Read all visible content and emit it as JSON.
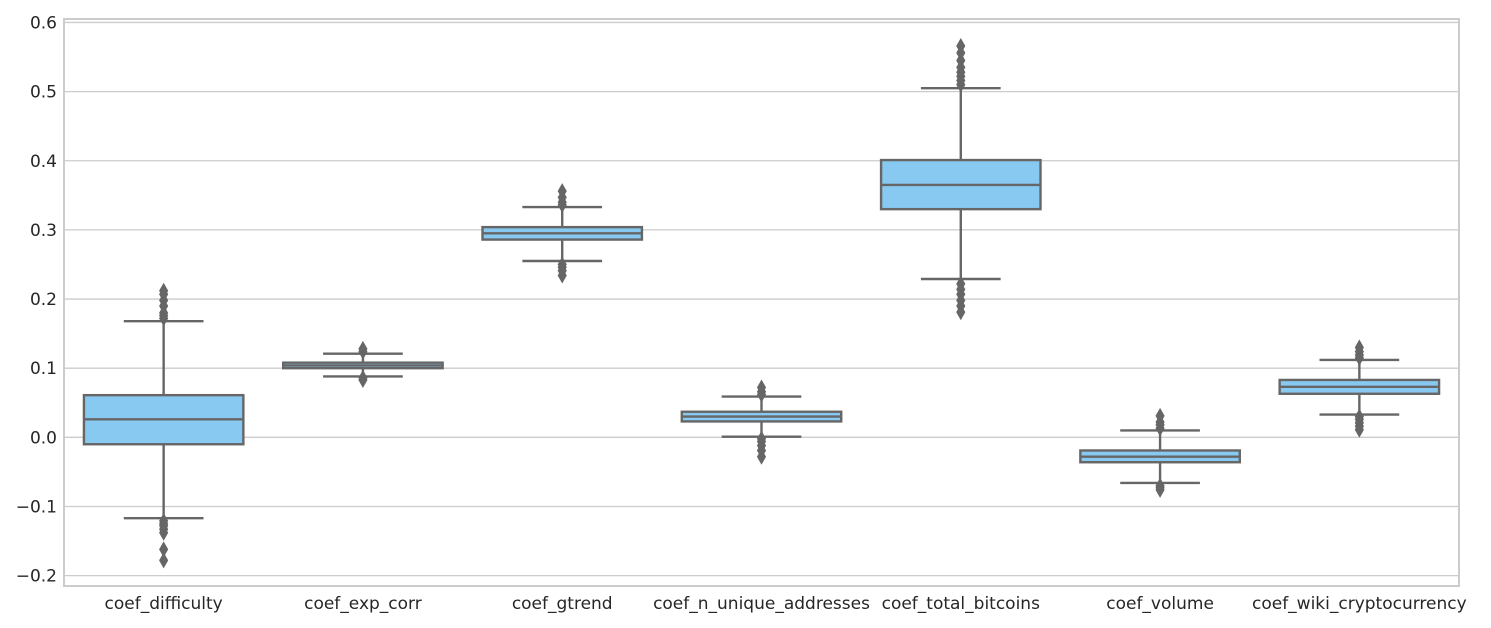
{
  "chart_data": {
    "type": "box",
    "title": "",
    "xlabel": "",
    "ylabel": "",
    "ylim": [
      -0.215,
      0.605
    ],
    "yticks": [
      -0.2,
      -0.1,
      0.0,
      0.1,
      0.2,
      0.3,
      0.4,
      0.5,
      0.6
    ],
    "ytick_labels": [
      "−0.2",
      "−0.1",
      "0.0",
      "0.1",
      "0.2",
      "0.3",
      "0.4",
      "0.5",
      "0.6"
    ],
    "grid": true,
    "box_color": "#87c9f0",
    "line_color": "#666666",
    "categories": [
      "coef_difficulty",
      "coef_exp_corr",
      "coef_gtrend",
      "coef_n_unique_addresses",
      "coef_total_bitcoins",
      "coef_volume",
      "coef_wiki_cryptocurrency"
    ],
    "boxes": [
      {
        "q1": -0.01,
        "median": 0.026,
        "q3": 0.061,
        "whisker_low": -0.117,
        "whisker_high": 0.168,
        "outliers": [
          0.172,
          0.176,
          0.18,
          0.19,
          0.198,
          0.207,
          0.212,
          -0.121,
          -0.125,
          -0.128,
          -0.133,
          -0.138,
          -0.162,
          -0.178
        ]
      },
      {
        "q1": 0.1,
        "median": 0.104,
        "q3": 0.108,
        "whisker_low": 0.088,
        "whisker_high": 0.121,
        "outliers": [
          0.124,
          0.128,
          0.083,
          0.086
        ]
      },
      {
        "q1": 0.286,
        "median": 0.295,
        "q3": 0.304,
        "whisker_low": 0.255,
        "whisker_high": 0.333,
        "outliers": [
          0.336,
          0.34,
          0.347,
          0.356,
          0.25,
          0.246,
          0.241,
          0.234
        ]
      },
      {
        "q1": 0.023,
        "median": 0.03,
        "q3": 0.037,
        "whisker_low": 0.001,
        "whisker_high": 0.059,
        "outliers": [
          0.062,
          0.066,
          0.072,
          -0.002,
          -0.006,
          -0.012,
          -0.019,
          -0.028
        ]
      },
      {
        "q1": 0.33,
        "median": 0.365,
        "q3": 0.401,
        "whisker_low": 0.229,
        "whisker_high": 0.505,
        "outliers": [
          0.51,
          0.516,
          0.522,
          0.528,
          0.535,
          0.545,
          0.556,
          0.566,
          0.222,
          0.214,
          0.207,
          0.198,
          0.19,
          0.181
        ]
      },
      {
        "q1": -0.036,
        "median": -0.028,
        "q3": -0.019,
        "whisker_low": -0.066,
        "whisker_high": 0.01,
        "outliers": [
          0.013,
          0.018,
          0.022,
          0.031,
          -0.07,
          -0.073,
          -0.076
        ]
      },
      {
        "q1": 0.063,
        "median": 0.073,
        "q3": 0.083,
        "whisker_low": 0.033,
        "whisker_high": 0.112,
        "outliers": [
          0.115,
          0.119,
          0.124,
          0.13,
          0.03,
          0.026,
          0.021,
          0.016,
          0.011
        ]
      }
    ]
  }
}
